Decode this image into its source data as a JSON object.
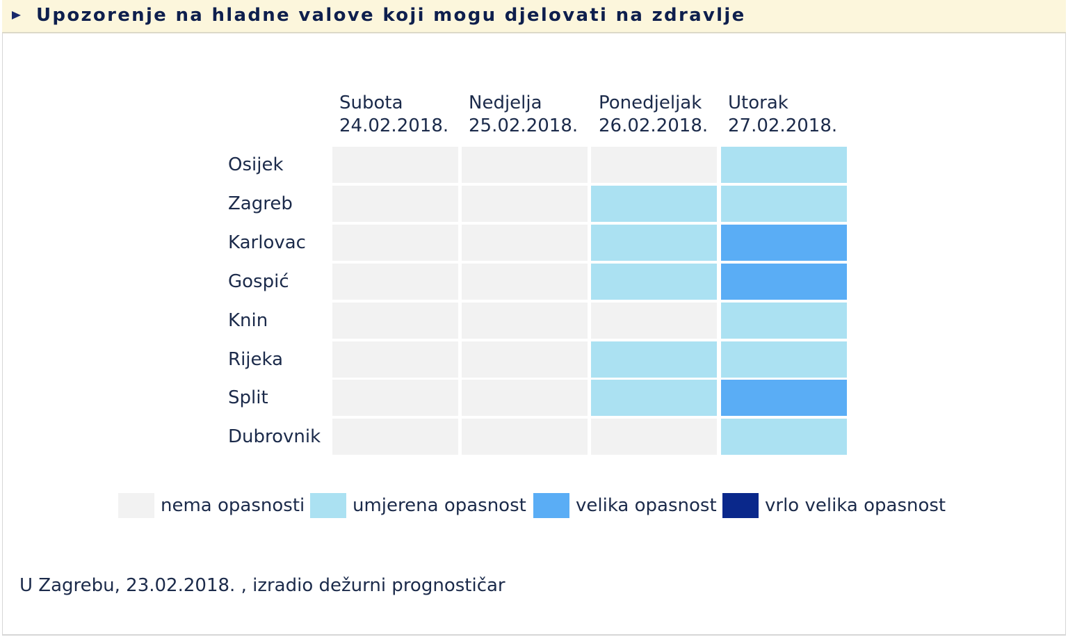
{
  "header": {
    "title": "Upozorenje na hladne valove koji mogu djelovati na zdravlje",
    "icon": "triangle-right-icon"
  },
  "days": [
    {
      "name": "Subota",
      "date": "24.02.2018."
    },
    {
      "name": "Nedjelja",
      "date": "25.02.2018."
    },
    {
      "name": "Ponedjeljak",
      "date": "26.02.2018."
    },
    {
      "name": "Utorak",
      "date": "27.02.2018."
    }
  ],
  "levels": {
    "0": {
      "label": "nema opasnosti",
      "color": "#f2f2f2"
    },
    "1": {
      "label": "umjerena opasnost",
      "color": "#abe1f2"
    },
    "2": {
      "label": "velika opasnost",
      "color": "#5aadf5"
    },
    "3": {
      "label": "vrlo velika opasnost",
      "color": "#0a288b"
    }
  },
  "cities": [
    {
      "name": "Osijek",
      "levels": [
        0,
        0,
        0,
        1
      ]
    },
    {
      "name": "Zagreb",
      "levels": [
        0,
        0,
        1,
        1
      ]
    },
    {
      "name": "Karlovac",
      "levels": [
        0,
        0,
        1,
        2
      ]
    },
    {
      "name": "Gospić",
      "levels": [
        0,
        0,
        1,
        2
      ]
    },
    {
      "name": "Knin",
      "levels": [
        0,
        0,
        0,
        1
      ]
    },
    {
      "name": "Rijeka",
      "levels": [
        0,
        0,
        1,
        1
      ]
    },
    {
      "name": "Split",
      "levels": [
        0,
        0,
        1,
        2
      ]
    },
    {
      "name": "Dubrovnik",
      "levels": [
        0,
        0,
        0,
        1
      ]
    }
  ],
  "legend": [
    {
      "label": "nema opasnosti",
      "color": "#f2f2f2"
    },
    {
      "label": "umjerena opasnost",
      "color": "#abe1f2"
    },
    {
      "label": "velika opasnost",
      "color": "#5aadf5"
    },
    {
      "label": "vrlo velika opasnost",
      "color": "#0a288b"
    }
  ],
  "footer": {
    "text": "U Zagrebu, 23.02.2018. , izradio dežurni prognostičar"
  }
}
